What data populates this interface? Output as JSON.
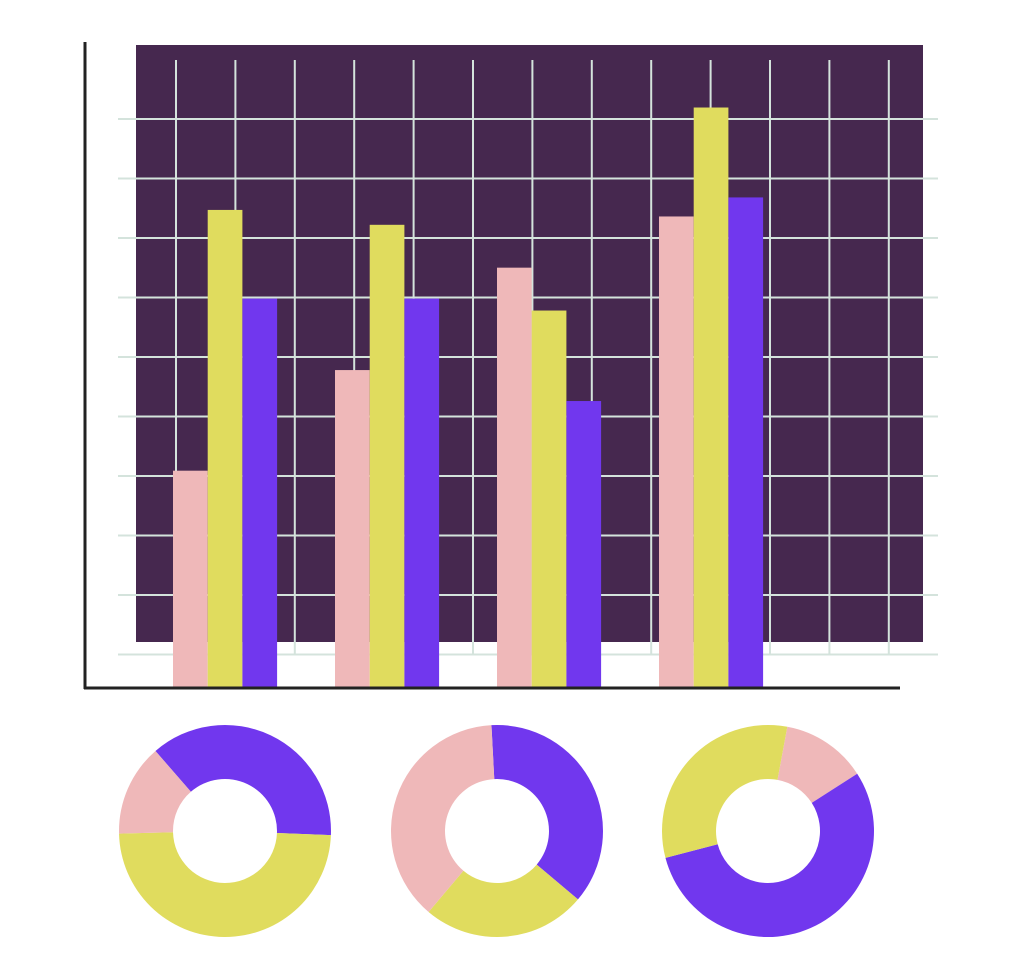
{
  "chart_data": [
    {
      "type": "bar",
      "categories": [
        null,
        null,
        null,
        null
      ],
      "ylim": [
        0,
        10.8
      ],
      "series": [
        {
          "color": "#efb8b9",
          "values": [
            3.65,
            5.34,
            7.06,
            7.92
          ]
        },
        {
          "color": "#e0dc5e",
          "values": [
            8.03,
            7.78,
            6.34,
            9.75
          ]
        },
        {
          "color": "#7137ee",
          "values": [
            6.54,
            6.54,
            4.82,
            8.24
          ]
        }
      ]
    },
    {
      "type": "pie",
      "values": [
        37,
        49,
        14
      ],
      "colors": [
        "#7137ee",
        "#e0dc5e",
        "#efb8b9"
      ]
    },
    {
      "type": "pie",
      "values": [
        37,
        25,
        38
      ],
      "colors": [
        "#7137ee",
        "#e0dc5e",
        "#efb8b9"
      ]
    },
    {
      "type": "pie",
      "values": [
        13,
        55,
        32
      ],
      "colors": [
        "#efb8b9",
        "#7137ee",
        "#e0dc5e"
      ]
    }
  ]
}
